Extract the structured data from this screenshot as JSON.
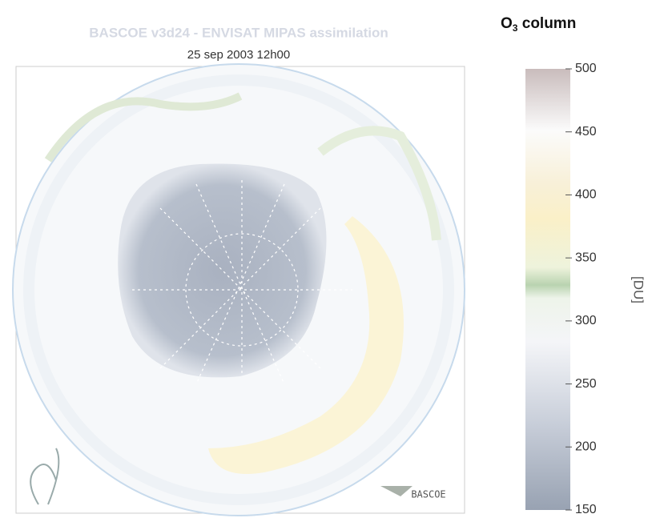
{
  "map": {
    "title": "BASCOE v3d24 - ENVISAT MIPAS assimilation",
    "subtitle": "25 sep 2003 12h00",
    "logo_text": "BASCOE"
  },
  "colorbar": {
    "title_base": "O",
    "title_sub": "3",
    "title_rest": " column",
    "unit": "[DU]",
    "lim": [
      150,
      500
    ],
    "ticks": [
      150,
      200,
      250,
      300,
      350,
      400,
      450,
      500
    ]
  }
}
